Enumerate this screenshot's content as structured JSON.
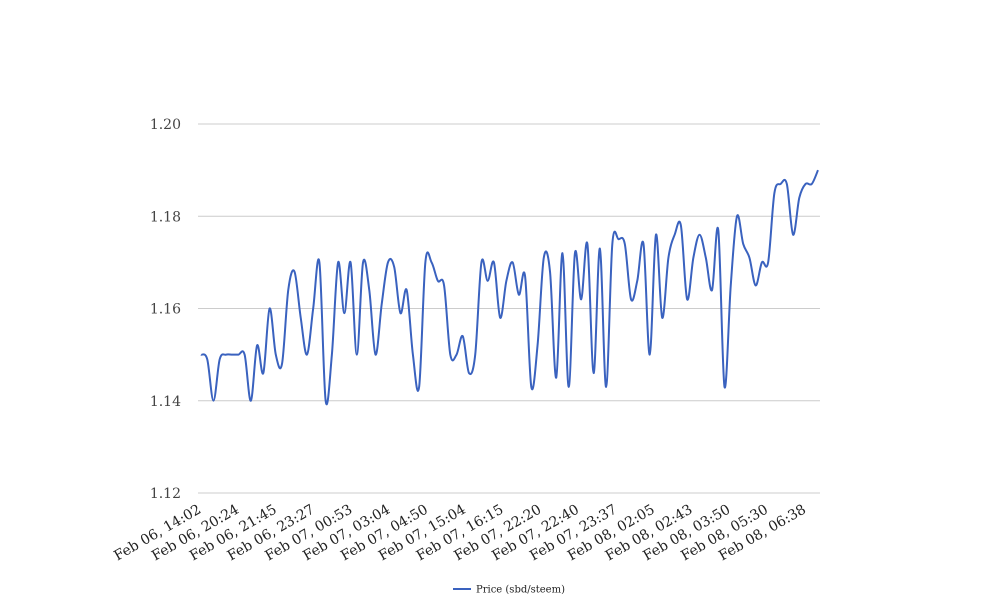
{
  "chart_data": {
    "type": "line",
    "title": "",
    "xlabel": "",
    "ylabel": "",
    "ylim": [
      1.12,
      1.2
    ],
    "yticks": [
      "1.20",
      "1.18",
      "1.16",
      "1.14",
      "1.12"
    ],
    "ytick_values": [
      1.2,
      1.18,
      1.16,
      1.14,
      1.12
    ],
    "xtick_labels": [
      "Feb 06, 14:02",
      "Feb 06, 20:24",
      "Feb 06, 21:45",
      "Feb 06, 23:27",
      "Feb 07, 00:53",
      "Feb 07, 03:04",
      "Feb 07, 04:50",
      "Feb 07, 15:04",
      "Feb 07, 16:15",
      "Feb 07, 22:20",
      "Feb 07, 22:40",
      "Feb 07, 23:37",
      "Feb 08, 02:05",
      "Feb 08, 02:43",
      "Feb 08, 03:50",
      "Feb 08, 05:30",
      "Feb 08, 06:38"
    ],
    "grid": true,
    "legend_position": "bottom",
    "series": [
      {
        "name": "Price (sbd/steem)",
        "color": "#3a62bf",
        "values": [
          1.15,
          1.149,
          1.14,
          1.149,
          1.15,
          1.15,
          1.15,
          1.15,
          1.14,
          1.152,
          1.146,
          1.16,
          1.15,
          1.148,
          1.164,
          1.168,
          1.158,
          1.15,
          1.16,
          1.17,
          1.14,
          1.15,
          1.17,
          1.159,
          1.17,
          1.15,
          1.17,
          1.164,
          1.15,
          1.161,
          1.17,
          1.169,
          1.159,
          1.164,
          1.15,
          1.143,
          1.17,
          1.17,
          1.166,
          1.165,
          1.15,
          1.15,
          1.154,
          1.146,
          1.15,
          1.17,
          1.166,
          1.17,
          1.158,
          1.166,
          1.17,
          1.163,
          1.167,
          1.143,
          1.152,
          1.171,
          1.168,
          1.145,
          1.172,
          1.143,
          1.172,
          1.162,
          1.174,
          1.146,
          1.173,
          1.143,
          1.174,
          1.175,
          1.174,
          1.162,
          1.166,
          1.174,
          1.15,
          1.176,
          1.158,
          1.171,
          1.176,
          1.178,
          1.162,
          1.171,
          1.176,
          1.171,
          1.164,
          1.177,
          1.143,
          1.165,
          1.18,
          1.174,
          1.171,
          1.165,
          1.17,
          1.17,
          1.185,
          1.187,
          1.187,
          1.176,
          1.184,
          1.187,
          1.187,
          1.19
        ]
      }
    ]
  }
}
